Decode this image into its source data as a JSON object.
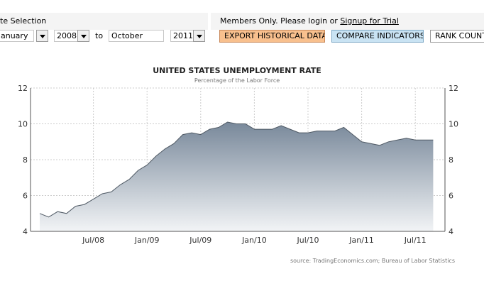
{
  "controls": {
    "date_selection_label": "te Selection",
    "from_month": "anuary",
    "from_year": "2008",
    "to_label": "to",
    "to_month": "October",
    "to_year": "2011",
    "members_text": "Members Only. Please login or",
    "signup_link": "Signup for Trial",
    "export_button": "EXPORT HISTORICAL DATA",
    "compare_button": "COMPARE INDICATORS",
    "rank_button": "RANK COUNTRI"
  },
  "colors": {
    "export_button": "#f8c08e",
    "compare_button": "#c9e3f3",
    "area_top": "#78889a",
    "area_bottom": "#f2f4f6",
    "line": "#4e5863"
  },
  "chart_data": {
    "type": "area",
    "title": "UNITED STATES UNEMPLOYMENT RATE",
    "subtitle": "Percentage of the Labor Force",
    "source": "source: TradingEconomics.com; Bureau of Labor Statistics",
    "x": [
      "2008-01",
      "2008-02",
      "2008-03",
      "2008-04",
      "2008-05",
      "2008-06",
      "2008-07",
      "2008-08",
      "2008-09",
      "2008-10",
      "2008-11",
      "2008-12",
      "2009-01",
      "2009-02",
      "2009-03",
      "2009-04",
      "2009-05",
      "2009-06",
      "2009-07",
      "2009-08",
      "2009-09",
      "2009-10",
      "2009-11",
      "2009-12",
      "2010-01",
      "2010-02",
      "2010-03",
      "2010-04",
      "2010-05",
      "2010-06",
      "2010-07",
      "2010-08",
      "2010-09",
      "2010-10",
      "2010-11",
      "2010-12",
      "2011-01",
      "2011-02",
      "2011-03",
      "2011-04",
      "2011-05",
      "2011-06",
      "2011-07",
      "2011-08",
      "2011-09"
    ],
    "values": [
      5.0,
      4.8,
      5.1,
      5.0,
      5.4,
      5.5,
      5.8,
      6.1,
      6.2,
      6.6,
      6.9,
      7.4,
      7.7,
      8.2,
      8.6,
      8.9,
      9.4,
      9.5,
      9.4,
      9.7,
      9.8,
      10.1,
      10.0,
      10.0,
      9.7,
      9.7,
      9.7,
      9.9,
      9.7,
      9.5,
      9.5,
      9.6,
      9.6,
      9.6,
      9.8,
      9.4,
      9.0,
      8.9,
      8.8,
      9.0,
      9.1,
      9.2,
      9.1,
      9.1,
      9.1
    ],
    "x_ticks": [
      "Jul/08",
      "Jan/09",
      "Jul/09",
      "Jan/10",
      "Jul/10",
      "Jan/11",
      "Jul/11"
    ],
    "y_ticks": [
      "4",
      "6",
      "8",
      "10",
      "12"
    ],
    "ylim": [
      4,
      12
    ],
    "grid": true
  }
}
